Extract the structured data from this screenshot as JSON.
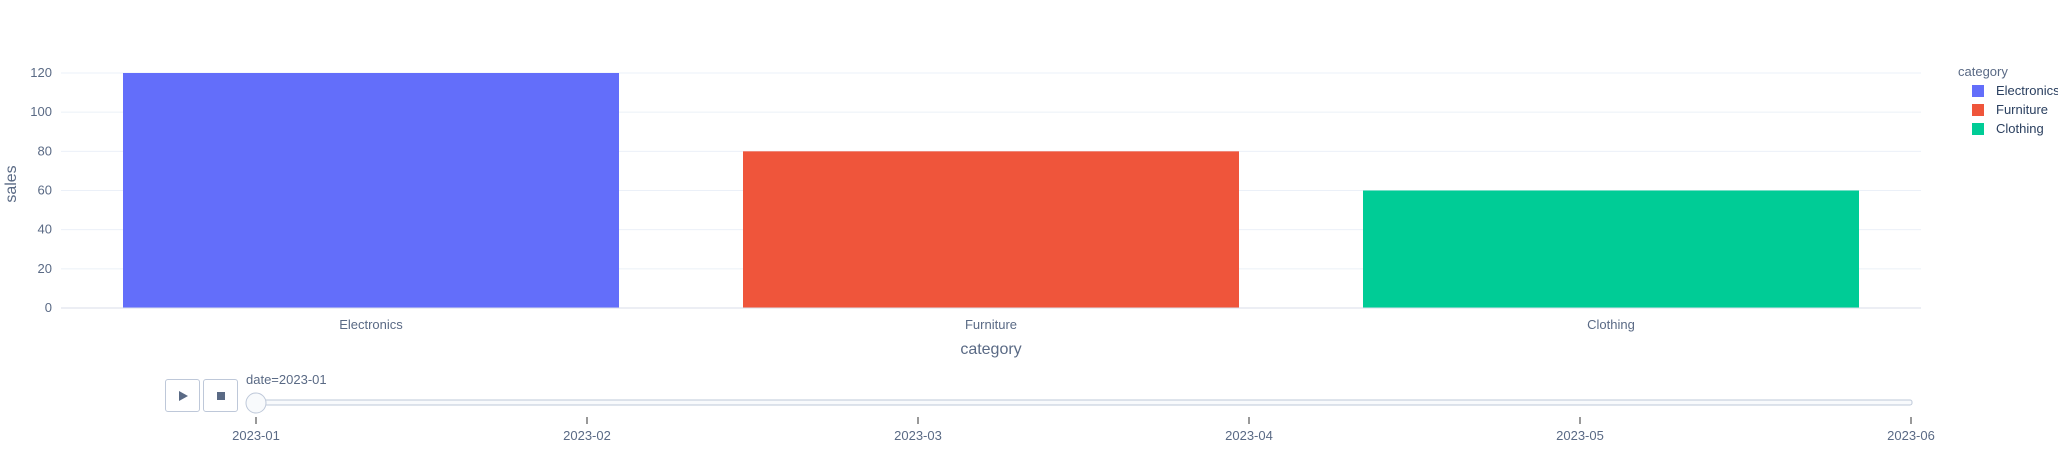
{
  "chart_data": {
    "type": "bar",
    "categories": [
      "Electronics",
      "Furniture",
      "Clothing"
    ],
    "values": [
      120,
      80,
      60
    ],
    "colors": [
      "#636efa",
      "#ef553b",
      "#00cc96"
    ],
    "xlabel": "category",
    "ylabel": "sales",
    "ylim": [
      0,
      120
    ],
    "yticks": [
      0,
      20,
      40,
      60,
      80,
      100,
      120
    ],
    "grid": true,
    "legend": {
      "title": "category",
      "placement": "top-right",
      "entries": [
        "Electronics",
        "Furniture",
        "Clothing"
      ]
    }
  },
  "slider": {
    "current_label": "date=2023-01",
    "current_value": "2023-01",
    "steps": [
      "2023-01",
      "2023-02",
      "2023-03",
      "2023-04",
      "2023-05",
      "2023-06"
    ]
  },
  "controls": {
    "play_icon": "play-icon",
    "stop_icon": "stop-icon"
  }
}
